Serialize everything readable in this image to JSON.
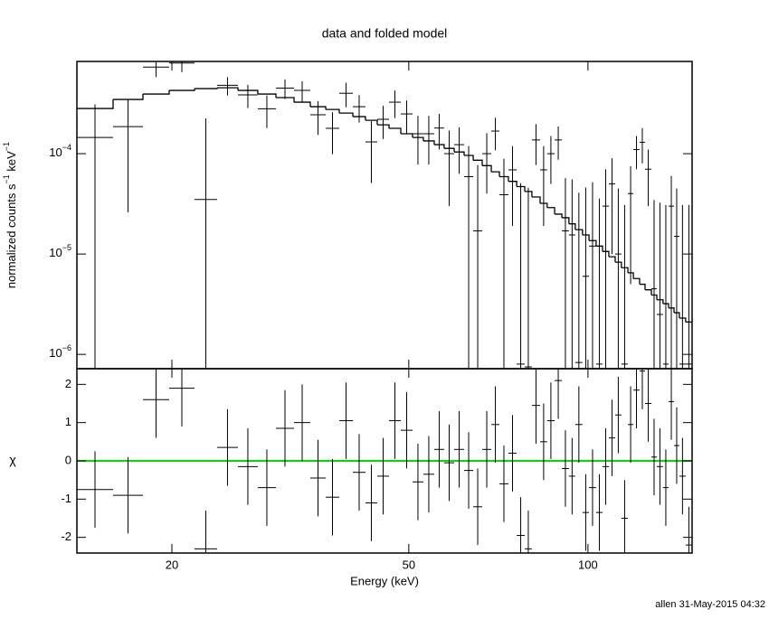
{
  "chart_data": {
    "type": "spectrum",
    "title": "data and folded model",
    "xlabel": "Energy (keV)",
    "xscale": "log",
    "xlim": [
      13.85,
      149.6
    ],
    "xticks": [
      20,
      50,
      100
    ],
    "bins": [
      13.85,
      15.93,
      17.88,
      19.79,
      21.83,
      23.82,
      25.82,
      27.88,
      29.91,
      32.08,
      34.16,
      36.26,
      38.21,
      40.27,
      42.29,
      44.26,
      46.32,
      48.48,
      50.73,
      52.9,
      55.17,
      57.33,
      59.6,
      61.94,
      64.15,
      66.43,
      68.8,
      71.0,
      73.5,
      75.9,
      78.3,
      80.5,
      83.1,
      85.4,
      87.9,
      90.4,
      92.9,
      95.2,
      97.9,
      100.4,
      103.2,
      105.8,
      108.4,
      111.1,
      113.8,
      116.7,
      119.2,
      122.1,
      124.7,
      127.8,
      130.5,
      133.7,
      136.6,
      139.5,
      142.4,
      145.9,
      149.6
    ],
    "footer": "allen 31-May-2015 04:32",
    "top": {
      "ylabel": {
        "text": "normalized counts s",
        "sup1": "−1",
        "text2": " keV",
        "sup2": "−1"
      },
      "yscale": "log",
      "ylim": [
        7.2e-07,
        0.00083
      ],
      "yticks": [
        {
          "value": 0.0001,
          "label": "10",
          "exponent": "−4"
        },
        {
          "value": 1e-05,
          "label": "10",
          "exponent": "−5"
        },
        {
          "value": 1e-06,
          "label": "10",
          "exponent": "−6"
        }
      ],
      "data_color": "#000000",
      "model_color": "#000000",
      "values": [
        0.000145,
        0.000186,
        0.00073,
        0.0008,
        3.5e-05,
        0.00048,
        0.000385,
        0.00028,
        0.00045,
        0.000427,
        0.000244,
        0.000179,
        0.0004,
        0.000294,
        0.000131,
        0.00022,
        0.000326,
        0.000249,
        0.000158,
        0.000158,
        0.00018,
        0.0001,
        0.000123,
        5.9e-05,
        1.7e-05,
        0.0001,
        0.000168,
        3.9e-05,
        6.9e-05,
        8e-07,
        7.5e-07,
        0.000137,
        6.9e-05,
        0.0001,
        0.000137,
        1.7e-05,
        1.55e-05,
        8.3e-07,
        6e-06,
        1.2e-05,
        8e-07,
        3e-05,
        5e-05,
        1e-05,
        8e-07,
        4e-05,
        0.00011,
        0.00013,
        7e-05,
        4.5e-06,
        2.5e-06,
        8e-07,
        3e-05,
        1.5e-05,
        8e-07,
        8e-07
      ],
      "errors": [
        0.000165,
        0.00016,
        0.00015,
        0.00015,
        0.00019,
        0.0001,
        0.0001,
        0.0001,
        0.0001,
        0.0001,
        9e-05,
        8e-05,
        0.00011,
        9e-05,
        8e-05,
        8e-05,
        0.0001,
        9e-05,
        8e-05,
        8e-05,
        7e-05,
        7e-05,
        6e-05,
        6e-05,
        6e-05,
        6e-05,
        6e-05,
        5e-05,
        5e-05,
        5e-05,
        4.5e-05,
        6e-05,
        5e-05,
        5e-05,
        5e-05,
        4e-05,
        4e-05,
        4e-05,
        4e-05,
        4e-05,
        3.5e-05,
        4e-05,
        4e-05,
        3.5e-05,
        3e-05,
        3.5e-05,
        4e-05,
        5e-05,
        4e-05,
        3e-05,
        3e-05,
        3e-05,
        3e-05,
        3e-05,
        3e-05,
        3e-05
      ],
      "model": [
        0.000282,
        0.000347,
        0.000393,
        0.000427,
        0.000445,
        0.000454,
        0.000427,
        0.000393,
        0.000362,
        0.000326,
        0.000294,
        0.000276,
        0.000254,
        0.000234,
        0.000215,
        0.000194,
        0.000179,
        0.000158,
        0.000145,
        0.000134,
        0.000123,
        0.000113,
        0.000104,
        9.6e-05,
        8.6e-05,
        7.6e-05,
        6.6e-05,
        5.9e-05,
        5.3e-05,
        4.7e-05,
        4.2e-05,
        3.7e-05,
        3.2e-05,
        2.9e-05,
        2.5e-05,
        2.3e-05,
        2e-05,
        1.75e-05,
        1.55e-05,
        1.36e-05,
        1.2e-05,
        1.06e-05,
        9.4e-06,
        8.3e-06,
        7.3e-06,
        6.5e-06,
        5.7e-06,
        5e-06,
        4.4e-06,
        3.9e-06,
        3.5e-06,
        3.2e-06,
        2.9e-06,
        2.6e-06,
        2.3e-06,
        2.1e-06
      ]
    },
    "bottom": {
      "ylabel": "χ",
      "yscale": "linear",
      "ylim": [
        -2.41,
        2.41
      ],
      "yticks": [
        -2,
        -1,
        0,
        1,
        2
      ],
      "data_color": "#000000",
      "reference_line": 0,
      "reference_color": "#00dd00",
      "values": [
        -0.75,
        -0.9,
        1.6,
        1.9,
        -2.3,
        0.35,
        -0.15,
        -0.7,
        0.85,
        1.0,
        -0.45,
        -0.95,
        1.05,
        -0.3,
        -1.1,
        -0.4,
        1.05,
        0.8,
        -0.55,
        -0.35,
        0.3,
        -0.05,
        0.3,
        -0.25,
        -1.2,
        0.3,
        0.95,
        -0.6,
        0.2,
        -1.95,
        -2.3,
        1.45,
        0.5,
        1.05,
        2.1,
        -0.2,
        -0.4,
        0.95,
        -1.35,
        -0.7,
        -1.35,
        -0.15,
        0.6,
        1.2,
        -1.5,
        0.95,
        1.85,
        2.35,
        1.5,
        0.1,
        -0.15,
        -0.7,
        1.55,
        0.4,
        -0.4,
        -2.2
      ],
      "errors": [
        1,
        1,
        1,
        1,
        1,
        1,
        1,
        1,
        1,
        1,
        1,
        1,
        1,
        1,
        1,
        1,
        1,
        1,
        1,
        1,
        1,
        1,
        1,
        1,
        1,
        1,
        1,
        1,
        1,
        1,
        1,
        1,
        1,
        1,
        1,
        1,
        1,
        1,
        1,
        1,
        1,
        1,
        1,
        1,
        1,
        1,
        1,
        1,
        1,
        1,
        1,
        1,
        1,
        1,
        1,
        1
      ]
    }
  }
}
